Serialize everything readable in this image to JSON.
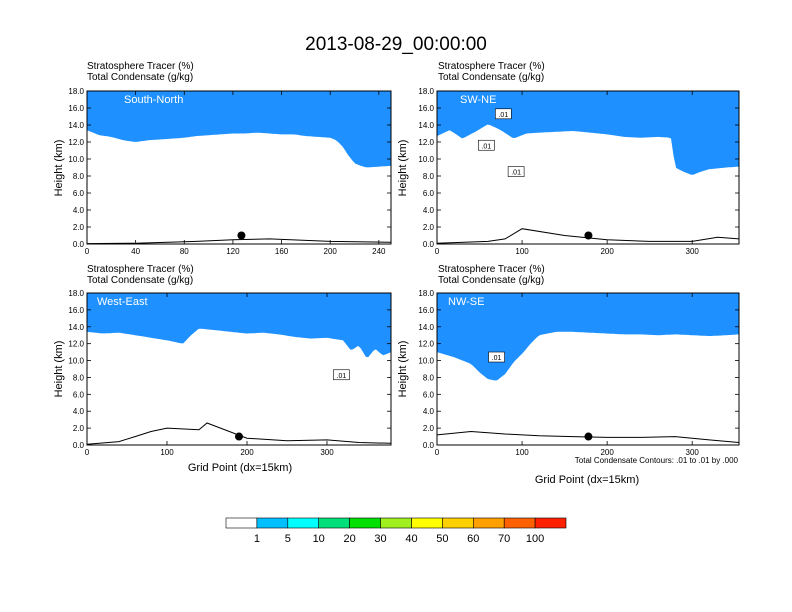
{
  "figure": {
    "title": "2013-08-29_00:00:00",
    "note": "Total Condensate Contours: .01 to .01 by .000"
  },
  "colors": {
    "levels": [
      "#ffffff",
      "#1e90ff",
      "#00bfff",
      "#00ffff",
      "#00e07a",
      "#00e000",
      "#a0f020",
      "#ffff00",
      "#ffd000",
      "#ffa000",
      "#ff6000",
      "#ff2000"
    ]
  },
  "colorbar": {
    "labels": [
      "1",
      "5",
      "10",
      "20",
      "30",
      "40",
      "50",
      "60",
      "70",
      "100"
    ]
  },
  "chart_data": [
    {
      "type": "contour",
      "name": "South-North",
      "line1": "Stratosphere Tracer   (%)",
      "line2": "Total Condensate   (g/kg)",
      "ylabel": "Height (km)",
      "xlabel": "",
      "xlim": [
        0,
        250
      ],
      "ylim": [
        0,
        18
      ],
      "xticks": [
        0,
        40,
        80,
        120,
        160,
        200,
        240
      ],
      "yticks": [
        "0.0",
        "2.0",
        "4.0",
        "6.0",
        "8.0",
        "10.0",
        "12.0",
        "14.0",
        "16.0",
        "18.0"
      ],
      "tropopause_x": [
        0,
        10,
        20,
        30,
        40,
        50,
        60,
        70,
        80,
        90,
        100,
        110,
        120,
        130,
        140,
        150,
        160,
        170,
        180,
        190,
        200,
        205,
        210,
        215,
        220,
        225,
        230,
        240,
        250
      ],
      "tropopause_h": [
        14.2,
        13.6,
        13.4,
        13.0,
        12.8,
        13.0,
        13.1,
        13.2,
        13.3,
        13.5,
        13.6,
        13.7,
        13.8,
        13.8,
        13.9,
        13.8,
        13.7,
        13.7,
        13.5,
        13.4,
        13.3,
        13.0,
        12.3,
        11.2,
        10.3,
        10.0,
        9.8,
        9.9,
        10.0
      ],
      "terrain_x": [
        0,
        40,
        90,
        120,
        150,
        200,
        250
      ],
      "terrain_h": [
        0.05,
        0.1,
        0.3,
        0.5,
        0.6,
        0.3,
        0.2
      ],
      "marker": [
        127,
        1.0
      ]
    },
    {
      "type": "contour",
      "name": "SW-NE",
      "line1": "Stratosphere Tracer   (%)",
      "line2": "Total Condensate   (g/kg)",
      "ylabel": "Height (km)",
      "xlabel": "",
      "xlim": [
        0,
        355
      ],
      "ylim": [
        0,
        18
      ],
      "xticks": [
        0,
        100,
        200,
        300
      ],
      "yticks": [
        "0.0",
        "2.0",
        "4.0",
        "6.0",
        "8.0",
        "10.0",
        "12.0",
        "14.0",
        "16.0",
        "18.0"
      ],
      "tropopause_x": [
        0,
        15,
        30,
        45,
        60,
        75,
        90,
        105,
        120,
        140,
        160,
        180,
        200,
        220,
        240,
        260,
        275,
        280,
        290,
        300,
        310,
        320,
        340,
        355
      ],
      "tropopause_h": [
        13.5,
        14.2,
        13.2,
        14.0,
        14.9,
        14.2,
        13.2,
        13.8,
        13.9,
        14.0,
        14.1,
        13.9,
        13.7,
        13.4,
        13.3,
        13.4,
        13.3,
        9.8,
        9.3,
        8.9,
        9.3,
        9.6,
        9.8,
        9.9
      ],
      "terrain_x": [
        0,
        60,
        80,
        100,
        150,
        200,
        250,
        300,
        330,
        355
      ],
      "terrain_h": [
        0.1,
        0.3,
        0.6,
        1.8,
        1.0,
        0.5,
        0.3,
        0.3,
        0.8,
        0.6
      ],
      "marker": [
        178,
        1.0
      ],
      "labels": [
        {
          "x": 78,
          "h": 15.2,
          "text": ".01"
        },
        {
          "x": 58,
          "h": 11.5,
          "text": ".01"
        },
        {
          "x": 93,
          "h": 8.4,
          "text": ".01"
        }
      ]
    },
    {
      "type": "contour",
      "name": "West-East",
      "line1": "Stratosphere Tracer   (%)",
      "line2": "Total Condensate   (g/kg)",
      "ylabel": "Height (km)",
      "xlabel": "Grid Point (dx=15km)",
      "xlim": [
        0,
        380
      ],
      "ylim": [
        0,
        18
      ],
      "xticks": [
        0,
        100,
        200,
        300
      ],
      "yticks": [
        "0.0",
        "2.0",
        "4.0",
        "6.0",
        "8.0",
        "10.0",
        "12.0",
        "14.0",
        "16.0",
        "18.0"
      ],
      "tropopause_x": [
        0,
        20,
        40,
        60,
        80,
        100,
        120,
        130,
        140,
        160,
        180,
        200,
        220,
        240,
        260,
        280,
        300,
        320,
        330,
        340,
        350,
        360,
        370,
        380
      ],
      "tropopause_h": [
        14.2,
        14.0,
        14.1,
        13.8,
        13.5,
        13.2,
        12.8,
        13.8,
        14.6,
        14.4,
        14.2,
        14.0,
        14.1,
        13.9,
        13.6,
        13.4,
        13.5,
        13.2,
        12.0,
        12.6,
        11.0,
        12.2,
        11.4,
        11.8
      ],
      "terrain_x": [
        0,
        40,
        60,
        80,
        100,
        140,
        150,
        200,
        250,
        300,
        340,
        380
      ],
      "terrain_h": [
        0.1,
        0.4,
        1.0,
        1.6,
        2.0,
        1.8,
        2.6,
        0.8,
        0.5,
        0.6,
        0.3,
        0.2
      ],
      "marker": [
        190,
        1.0
      ],
      "labels": [
        {
          "x": 318,
          "h": 8.2,
          "text": ".01"
        }
      ]
    },
    {
      "type": "contour",
      "name": "NW-SE",
      "line1": "Stratosphere Tracer   (%)",
      "line2": "Total Condensate   (g/kg)",
      "ylabel": "Height (km)",
      "xlabel": "Grid Point (dx=15km)",
      "xlim": [
        0,
        355
      ],
      "ylim": [
        0,
        18
      ],
      "xticks": [
        0,
        100,
        200,
        300
      ],
      "yticks": [
        "0.0",
        "2.0",
        "4.0",
        "6.0",
        "8.0",
        "10.0",
        "12.0",
        "14.0",
        "16.0",
        "18.0"
      ],
      "tropopause_x": [
        0,
        20,
        40,
        50,
        60,
        70,
        80,
        90,
        100,
        110,
        120,
        140,
        160,
        180,
        200,
        220,
        240,
        260,
        280,
        300,
        320,
        340,
        355
      ],
      "tropopause_h": [
        11.8,
        11.2,
        10.4,
        9.4,
        8.6,
        8.4,
        9.2,
        10.6,
        11.6,
        12.8,
        13.8,
        14.2,
        14.2,
        14.1,
        14.0,
        13.9,
        13.9,
        13.8,
        13.9,
        13.8,
        13.7,
        13.8,
        13.9
      ],
      "terrain_x": [
        0,
        40,
        80,
        120,
        160,
        200,
        240,
        280,
        320,
        355
      ],
      "terrain_h": [
        1.2,
        1.6,
        1.3,
        1.1,
        1.0,
        0.9,
        0.9,
        1.0,
        0.6,
        0.3
      ],
      "marker": [
        178,
        1.0
      ],
      "labels": [
        {
          "x": 70,
          "h": 10.3,
          "text": ".01"
        }
      ]
    }
  ]
}
